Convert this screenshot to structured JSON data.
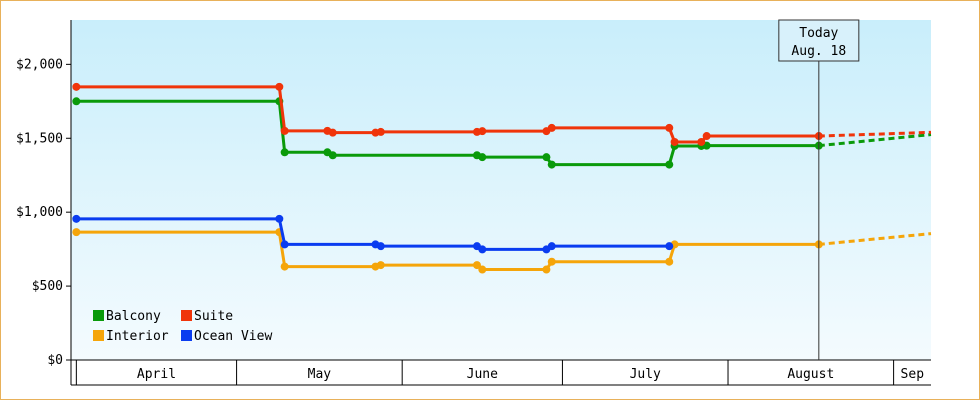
{
  "chart_data": {
    "type": "line",
    "title": "",
    "xlabel": "",
    "ylabel": "",
    "ylim": [
      0,
      2300
    ],
    "yticks": [
      {
        "value": 0,
        "label": "$0"
      },
      {
        "value": 500,
        "label": "$500"
      },
      {
        "value": 1000,
        "label": "$1,000"
      },
      {
        "value": 1500,
        "label": "$1,500"
      },
      {
        "value": 2000,
        "label": "$2,000"
      }
    ],
    "xlim": [
      "2015-03-31",
      "2015-09-08"
    ],
    "months": [
      {
        "label": "April",
        "start": "2015-04-01",
        "end": "2015-05-01"
      },
      {
        "label": "May",
        "start": "2015-05-01",
        "end": "2015-06-01"
      },
      {
        "label": "June",
        "start": "2015-06-01",
        "end": "2015-07-01"
      },
      {
        "label": "July",
        "start": "2015-07-01",
        "end": "2015-08-01"
      },
      {
        "label": "August",
        "start": "2015-08-01",
        "end": "2015-09-01"
      },
      {
        "label": "Sep",
        "start": "2015-09-01",
        "end": "2015-09-08"
      }
    ],
    "today": {
      "date": "2015-08-18",
      "label_line1": "Today",
      "label_line2": "Aug. 18"
    },
    "legend": {
      "placement": "bottom-left"
    },
    "series": [
      {
        "name": "Balcony",
        "color": "#0a9a0a",
        "points": [
          {
            "date": "2015-04-01",
            "value": 1750
          },
          {
            "date": "2015-05-09",
            "value": 1750
          },
          {
            "date": "2015-05-10",
            "value": 1405
          },
          {
            "date": "2015-05-18",
            "value": 1405
          },
          {
            "date": "2015-05-19",
            "value": 1385
          },
          {
            "date": "2015-06-15",
            "value": 1385
          },
          {
            "date": "2015-06-16",
            "value": 1372
          },
          {
            "date": "2015-06-28",
            "value": 1372
          },
          {
            "date": "2015-06-29",
            "value": 1322
          },
          {
            "date": "2015-07-21",
            "value": 1322
          },
          {
            "date": "2015-07-22",
            "value": 1448
          },
          {
            "date": "2015-07-27",
            "value": 1448
          },
          {
            "date": "2015-07-28",
            "value": 1450
          },
          {
            "date": "2015-08-18",
            "value": 1450
          }
        ],
        "forecast": [
          {
            "date": "2015-08-18",
            "value": 1450
          },
          {
            "date": "2015-09-08",
            "value": 1525
          }
        ]
      },
      {
        "name": "Suite",
        "color": "#f0340a",
        "points": [
          {
            "date": "2015-04-01",
            "value": 1848
          },
          {
            "date": "2015-05-09",
            "value": 1848
          },
          {
            "date": "2015-05-10",
            "value": 1550
          },
          {
            "date": "2015-05-18",
            "value": 1550
          },
          {
            "date": "2015-05-19",
            "value": 1538
          },
          {
            "date": "2015-05-27",
            "value": 1538
          },
          {
            "date": "2015-05-28",
            "value": 1543
          },
          {
            "date": "2015-06-15",
            "value": 1543
          },
          {
            "date": "2015-06-16",
            "value": 1548
          },
          {
            "date": "2015-06-28",
            "value": 1548
          },
          {
            "date": "2015-06-29",
            "value": 1570
          },
          {
            "date": "2015-07-21",
            "value": 1570
          },
          {
            "date": "2015-07-22",
            "value": 1475
          },
          {
            "date": "2015-07-27",
            "value": 1475
          },
          {
            "date": "2015-07-28",
            "value": 1515
          },
          {
            "date": "2015-08-18",
            "value": 1515
          }
        ],
        "forecast": [
          {
            "date": "2015-08-18",
            "value": 1515
          },
          {
            "date": "2015-09-08",
            "value": 1540
          }
        ]
      },
      {
        "name": "Interior",
        "color": "#f5a50a",
        "points": [
          {
            "date": "2015-04-01",
            "value": 865
          },
          {
            "date": "2015-05-09",
            "value": 865
          },
          {
            "date": "2015-05-10",
            "value": 632
          },
          {
            "date": "2015-05-27",
            "value": 632
          },
          {
            "date": "2015-05-28",
            "value": 642
          },
          {
            "date": "2015-06-15",
            "value": 642
          },
          {
            "date": "2015-06-16",
            "value": 612
          },
          {
            "date": "2015-06-28",
            "value": 612
          },
          {
            "date": "2015-06-29",
            "value": 665
          },
          {
            "date": "2015-07-21",
            "value": 665
          },
          {
            "date": "2015-07-22",
            "value": 782
          },
          {
            "date": "2015-08-18",
            "value": 782
          }
        ],
        "forecast": [
          {
            "date": "2015-08-18",
            "value": 782
          },
          {
            "date": "2015-09-08",
            "value": 855
          }
        ]
      },
      {
        "name": "Ocean View",
        "color": "#0a3cf0",
        "points": [
          {
            "date": "2015-04-01",
            "value": 955
          },
          {
            "date": "2015-05-09",
            "value": 955
          },
          {
            "date": "2015-05-10",
            "value": 782
          },
          {
            "date": "2015-05-27",
            "value": 782
          },
          {
            "date": "2015-05-28",
            "value": 770
          },
          {
            "date": "2015-06-15",
            "value": 770
          },
          {
            "date": "2015-06-16",
            "value": 748
          },
          {
            "date": "2015-06-28",
            "value": 748
          },
          {
            "date": "2015-06-29",
            "value": 770
          },
          {
            "date": "2015-07-21",
            "value": 770
          }
        ]
      }
    ]
  }
}
